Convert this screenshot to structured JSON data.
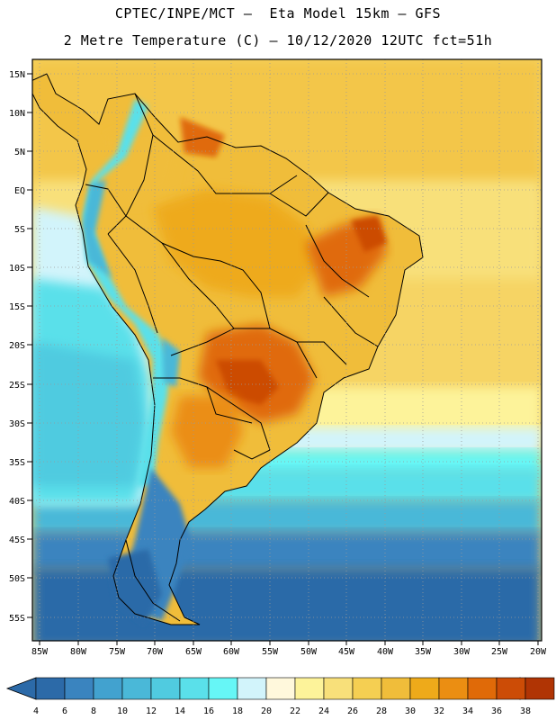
{
  "header": {
    "line1": "CPTEC/INPE/MCT –  Eta Model 15km – GFS",
    "line2": "2 Metre Temperature (C) – 10/12/2020 12UTC fct=51h"
  },
  "map": {
    "lat_labels": [
      "15N",
      "10N",
      "5N",
      "EQ",
      "5S",
      "10S",
      "15S",
      "20S",
      "25S",
      "30S",
      "35S",
      "40S",
      "45S",
      "50S",
      "55S"
    ],
    "lon_labels": [
      "85W",
      "80W",
      "75W",
      "70W",
      "65W",
      "60W",
      "55W",
      "50W",
      "45W",
      "40W",
      "35W",
      "30W",
      "25W",
      "20W"
    ]
  },
  "legend": {
    "values": [
      "4",
      "6",
      "8",
      "10",
      "12",
      "14",
      "16",
      "18",
      "20",
      "22",
      "24",
      "26",
      "28",
      "30",
      "32",
      "34",
      "36",
      "38"
    ],
    "colors": [
      "#2c6aa8",
      "#3a84bf",
      "#42a2cf",
      "#4ab8d8",
      "#50cbe0",
      "#5ae0ea",
      "#66f6f6",
      "#d2f4fb",
      "#fff8dc",
      "#fdf39a",
      "#f8e07a",
      "#f5cf52",
      "#f0bd3a",
      "#eeaa1a",
      "#eb8e12",
      "#e06a08",
      "#cc4c06",
      "#b03404"
    ]
  }
}
